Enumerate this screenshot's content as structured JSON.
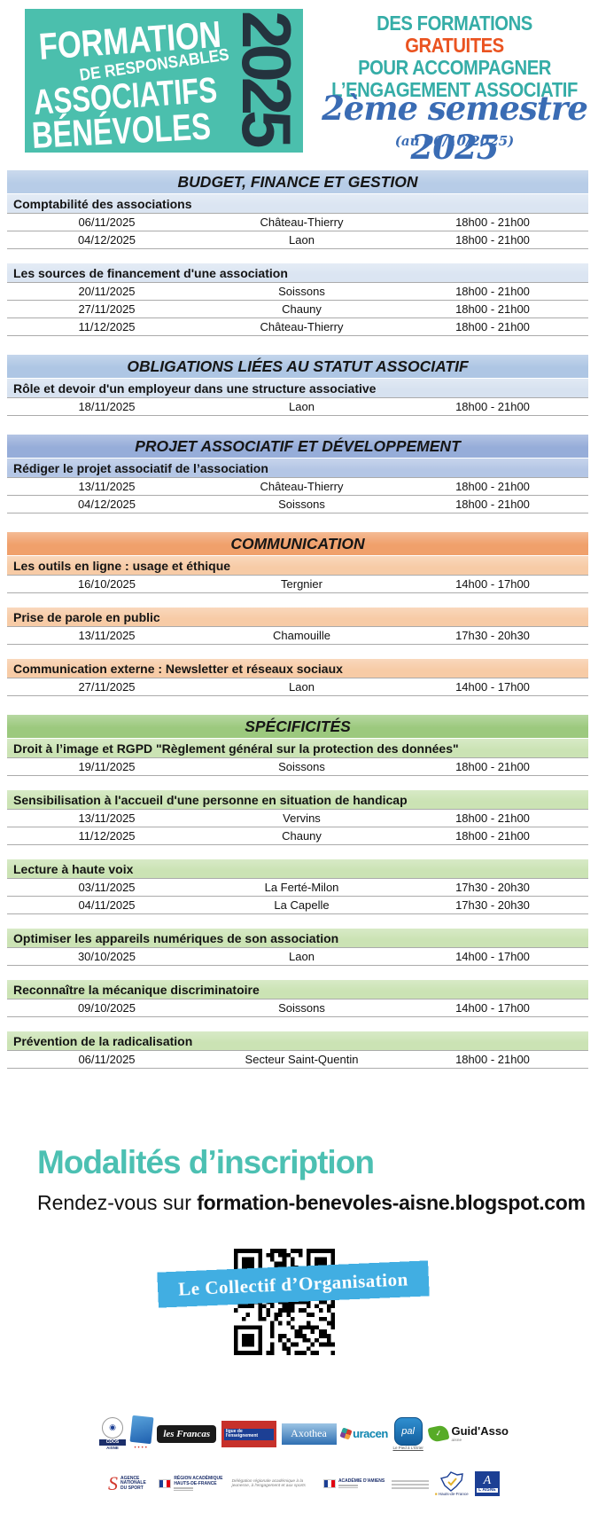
{
  "header": {
    "badge": {
      "line1": "FORMATION",
      "line2": "DE RESPONSABLES",
      "line3": "ASSOCIATIFS",
      "line4": "BÉNÉVOLES",
      "year": "2025",
      "bg_color": "#4bbfad",
      "year_color": "#24333e"
    },
    "tagline": {
      "part1": "DES FORMATIONS ",
      "highlight": "GRATUITES",
      "line2": "POUR ACCOMPAGNER",
      "line3": "L’ENGAGEMENT ASSOCIATIF",
      "teal_color": "#35ada7",
      "orange_color": "#ea5320"
    },
    "semester": "2ème semestre 2025",
    "as_of": "(au 06/10/2025)",
    "semester_color": "#3a6cb4"
  },
  "sections": [
    {
      "title": "BUDGET, FINANCE ET GESTION",
      "header_color": "#b7cce7",
      "sub_color": "#dbe5f2",
      "courses": [
        {
          "title": "Comptabilité des associations",
          "sessions": [
            {
              "date": "06/11/2025",
              "location": "Château-Thierry",
              "time": "18h00 - 21h00"
            },
            {
              "date": "04/12/2025",
              "location": "Laon",
              "time": "18h00 - 21h00"
            }
          ]
        },
        {
          "title": "Les sources de financement d'une association",
          "sessions": [
            {
              "date": "20/11/2025",
              "location": "Soissons",
              "time": "18h00 - 21h00"
            },
            {
              "date": "27/11/2025",
              "location": "Chauny",
              "time": "18h00 - 21h00"
            },
            {
              "date": "11/12/2025",
              "location": "Château-Thierry",
              "time": "18h00 - 21h00"
            }
          ]
        }
      ]
    },
    {
      "title": "OBLIGATIONS LIÉES AU STATUT ASSOCIATIF",
      "header_color": "#aec6e4",
      "sub_color": "#d7e2f0",
      "courses": [
        {
          "title": "Rôle et devoir d'un employeur dans une structure associative",
          "sessions": [
            {
              "date": "18/11/2025",
              "location": "Laon",
              "time": "18h00 - 21h00"
            }
          ]
        }
      ]
    },
    {
      "title": "PROJET ASSOCIATIF ET DÉVELOPPEMENT",
      "header_color": "#96add9",
      "sub_color": "#b4c6e5",
      "courses": [
        {
          "title": "Rédiger le projet associatif de l’association",
          "sessions": [
            {
              "date": "13/11/2025",
              "location": "Château-Thierry",
              "time": "18h00 - 21h00"
            },
            {
              "date": "04/12/2025",
              "location": "Soissons",
              "time": "18h00 - 21h00"
            }
          ]
        }
      ]
    },
    {
      "title": "COMMUNICATION",
      "header_color": "#f0a06b",
      "sub_color": "#f7cba6",
      "courses": [
        {
          "title": "Les outils en ligne : usage et éthique",
          "sessions": [
            {
              "date": "16/10/2025",
              "location": "Tergnier",
              "time": "14h00 - 17h00"
            }
          ]
        },
        {
          "title": "Prise de parole en public",
          "sessions": [
            {
              "date": "13/11/2025",
              "location": "Chamouille",
              "time": "17h30 - 20h30"
            }
          ]
        },
        {
          "title": "Communication externe : Newsletter et réseaux sociaux",
          "sessions": [
            {
              "date": "27/11/2025",
              "location": "Laon",
              "time": "14h00 - 17h00"
            }
          ]
        }
      ]
    },
    {
      "title": "SPÉCIFICITÉS",
      "header_color": "#9cc97e",
      "sub_color": "#cbe3b4",
      "courses": [
        {
          "title": "Droit à l’image et RGPD \"Règlement général sur la protection des données\"",
          "sessions": [
            {
              "date": "19/11/2025",
              "location": "Soissons",
              "time": "18h00 - 21h00"
            }
          ]
        },
        {
          "title": "Sensibilisation à l'accueil d'une personne en situation de handicap",
          "sessions": [
            {
              "date": "13/11/2025",
              "location": "Vervins",
              "time": "18h00 - 21h00"
            },
            {
              "date": "11/12/2025",
              "location": "Chauny",
              "time": "18h00 - 21h00"
            }
          ]
        },
        {
          "title": "Lecture à haute voix",
          "sessions": [
            {
              "date": "03/11/2025",
              "location": "La Ferté-Milon",
              "time": "17h30 - 20h30"
            },
            {
              "date": "04/11/2025",
              "location": "La Capelle",
              "time": "17h30 - 20h30"
            }
          ]
        },
        {
          "title": "Optimiser les appareils numériques de son association",
          "sessions": [
            {
              "date": "30/10/2025",
              "location": "Laon",
              "time": "14h00 - 17h00"
            }
          ]
        },
        {
          "title": "Reconnaître la mécanique discriminatoire",
          "sessions": [
            {
              "date": "09/10/2025",
              "location": "Soissons",
              "time": "14h00 - 17h00"
            }
          ]
        },
        {
          "title": "Prévention de la radicalisation",
          "sessions": [
            {
              "date": "06/11/2025",
              "location": "Secteur Saint-Quentin",
              "time": "18h00 - 21h00"
            }
          ]
        }
      ]
    }
  ],
  "footer": {
    "signup_title": "Modalités d’inscription",
    "signup_title_color": "#4cc0b2",
    "signup_prefix": "Rendez-vous sur ",
    "signup_url": "formation-benevoles-aisne.blogspot.com",
    "banner_label": "Le Collectif d’Organisation",
    "banner_color": "#41aee2",
    "logos_row1": [
      {
        "id": "cdos",
        "label": "CDOS",
        "sublabel": "AISNE"
      },
      {
        "id": "blue-card",
        "label": ""
      },
      {
        "id": "francas",
        "label": "les Francas"
      },
      {
        "id": "ligue",
        "label": "ligue de l'enseignement"
      },
      {
        "id": "axothea",
        "label": "Axothea"
      },
      {
        "id": "uracen",
        "label": "uracen"
      },
      {
        "id": "pal",
        "label": "pal",
        "sublabel": "Le Pied à L'Étrier"
      },
      {
        "id": "guidasso",
        "label": "Guid'Asso",
        "sublabel": "aisne"
      }
    ],
    "logos_row2": [
      {
        "id": "ans",
        "label": "AGENCE NATIONALE DU SPORT"
      },
      {
        "id": "region-academique",
        "label": "RÉGION ACADÉMIQUE HAUTS-DE-FRANCE"
      },
      {
        "id": "drajes-caption",
        "label": "Délégation régionale académique à la jeunesse, à l'engagement et aux sports"
      },
      {
        "id": "academie-amiens",
        "label": "ACADÉMIE D'AMIENS"
      },
      {
        "id": "sdjes-caption",
        "label": ""
      },
      {
        "id": "hdf-map",
        "label": "Hauts-de-France"
      },
      {
        "id": "aisne",
        "label": "L'AISNE"
      }
    ]
  }
}
